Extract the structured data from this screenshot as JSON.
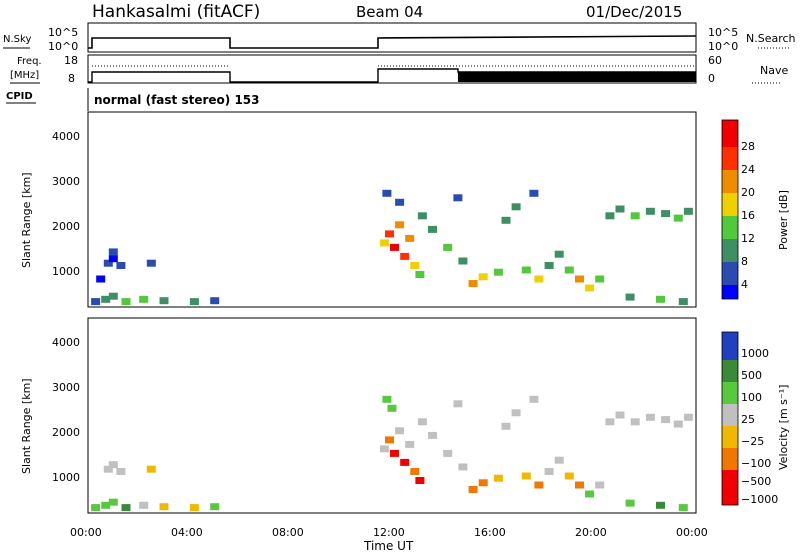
{
  "header": {
    "station": "Hankasalmi (fitACF)",
    "beam": "Beam 04",
    "date": "01/Dec/2015"
  },
  "strips": {
    "nsky_label": "N.Sky",
    "nsky_ticks": [
      "10^5",
      "10^0"
    ],
    "nsearch_ticks": [
      "10^5",
      "10^0"
    ],
    "nsearch_label": "N.Search",
    "freq_label_1": "Freq.",
    "freq_label_2": "[MHz]",
    "freq_ticks": [
      "18",
      "8"
    ],
    "nave_ticks": [
      "60",
      "0"
    ],
    "nave_label": "Nave",
    "cpid_label": "CPID",
    "cpid_value": "normal (fast stereo) 153"
  },
  "axes": {
    "ylabel": "Slant Range [km]",
    "xlabel": "Time UT",
    "y_ticks": [
      "4000",
      "3000",
      "2000",
      "1000"
    ],
    "x_ticks": [
      "00:00",
      "04:00",
      "08:00",
      "12:00",
      "16:00",
      "20:00",
      "00:00"
    ]
  },
  "colors": {
    "power": [
      "#0000ff",
      "#2a4cb0",
      "#3f8f64",
      "#52c83c",
      "#f0d000",
      "#f08c00",
      "#ff3000",
      "#f00000"
    ],
    "velocity": [
      "#2040c0",
      "#3a8a3a",
      "#58c840",
      "#c0c0c0",
      "#f0b800",
      "#f07800",
      "#f00000"
    ]
  },
  "chart_data": [
    {
      "type": "heatmap",
      "title": "Power",
      "ylabel": "Slant Range [km]",
      "xlabel": "Time UT",
      "xlim": [
        0,
        24
      ],
      "ylim": [
        180,
        4500
      ],
      "colorbar_label": "Power [dB]",
      "colorbar_ticks": [
        "28",
        "24",
        "20",
        "16",
        "12",
        "8",
        "4"
      ],
      "clim": [
        0,
        30
      ],
      "points": [
        [
          0.3,
          300,
          6
        ],
        [
          0.7,
          350,
          8
        ],
        [
          1.0,
          420,
          10
        ],
        [
          1.5,
          300,
          12
        ],
        [
          2.2,
          350,
          14
        ],
        [
          3.0,
          320,
          8
        ],
        [
          4.2,
          300,
          9
        ],
        [
          5.0,
          320,
          6
        ],
        [
          0.8,
          1150,
          4
        ],
        [
          1.0,
          1250,
          3
        ],
        [
          1.3,
          1100,
          6
        ],
        [
          0.5,
          800,
          3
        ],
        [
          2.5,
          1150,
          6
        ],
        [
          1.0,
          1400,
          4
        ],
        [
          11.7,
          1600,
          18
        ],
        [
          11.9,
          1800,
          24
        ],
        [
          12.1,
          1500,
          28
        ],
        [
          12.3,
          2000,
          20
        ],
        [
          12.5,
          1300,
          26
        ],
        [
          12.7,
          1700,
          22
        ],
        [
          12.9,
          1100,
          16
        ],
        [
          13.1,
          900,
          14
        ],
        [
          13.2,
          2200,
          10
        ],
        [
          13.6,
          1900,
          8
        ],
        [
          14.2,
          1500,
          12
        ],
        [
          14.8,
          1200,
          10
        ],
        [
          15.2,
          700,
          20
        ],
        [
          15.6,
          850,
          18
        ],
        [
          16.2,
          950,
          14
        ],
        [
          16.5,
          2100,
          10
        ],
        [
          16.9,
          2400,
          8
        ],
        [
          17.3,
          1000,
          12
        ],
        [
          17.8,
          800,
          16
        ],
        [
          18.2,
          1100,
          10
        ],
        [
          18.6,
          1350,
          8
        ],
        [
          19.0,
          1000,
          12
        ],
        [
          19.4,
          800,
          20
        ],
        [
          19.8,
          600,
          16
        ],
        [
          20.2,
          800,
          12
        ],
        [
          20.6,
          2200,
          8
        ],
        [
          21.0,
          2350,
          10
        ],
        [
          21.6,
          2200,
          12
        ],
        [
          22.2,
          2300,
          8
        ],
        [
          22.8,
          2250,
          10
        ],
        [
          23.3,
          2150,
          12
        ],
        [
          23.7,
          2300,
          8
        ],
        [
          21.4,
          400,
          10
        ],
        [
          22.6,
          350,
          12
        ],
        [
          23.5,
          300,
          8
        ],
        [
          11.8,
          2700,
          4
        ],
        [
          12.3,
          2500,
          6
        ],
        [
          14.6,
          2600,
          4
        ],
        [
          17.6,
          2700,
          4
        ]
      ]
    },
    {
      "type": "heatmap",
      "title": "Velocity",
      "ylabel": "Slant Range [km]",
      "xlabel": "Time UT",
      "xlim": [
        0,
        24
      ],
      "ylim": [
        180,
        4500
      ],
      "colorbar_label": "Velocity [m s⁻¹]",
      "colorbar_ticks": [
        "1000",
        "500",
        "100",
        "25",
        "−25",
        "−100",
        "−500",
        "−1000"
      ],
      "points": [
        [
          0.3,
          300,
          40
        ],
        [
          0.7,
          350,
          80
        ],
        [
          1.0,
          420,
          60
        ],
        [
          1.5,
          300,
          120
        ],
        [
          2.2,
          350,
          -20
        ],
        [
          3.0,
          320,
          -80
        ],
        [
          4.2,
          300,
          -60
        ],
        [
          5.0,
          320,
          30
        ],
        [
          0.8,
          1150,
          0
        ],
        [
          1.0,
          1250,
          -10
        ],
        [
          1.3,
          1100,
          20
        ],
        [
          2.5,
          1150,
          -30
        ],
        [
          11.7,
          1600,
          0
        ],
        [
          11.9,
          1800,
          -300
        ],
        [
          12.1,
          1500,
          -700
        ],
        [
          12.3,
          2000,
          0
        ],
        [
          12.5,
          1300,
          -900
        ],
        [
          12.7,
          1700,
          10
        ],
        [
          12.9,
          1100,
          -400
        ],
        [
          13.1,
          900,
          -600
        ],
        [
          13.2,
          2200,
          5
        ],
        [
          13.6,
          1900,
          0
        ],
        [
          14.2,
          1500,
          10
        ],
        [
          14.8,
          1200,
          -5
        ],
        [
          15.2,
          700,
          -200
        ],
        [
          15.6,
          850,
          -150
        ],
        [
          16.2,
          950,
          -50
        ],
        [
          16.5,
          2100,
          0
        ],
        [
          16.9,
          2400,
          5
        ],
        [
          17.3,
          1000,
          -80
        ],
        [
          17.8,
          800,
          -120
        ],
        [
          18.2,
          1100,
          0
        ],
        [
          18.6,
          1350,
          10
        ],
        [
          19.0,
          1000,
          -30
        ],
        [
          19.4,
          800,
          -120
        ],
        [
          19.8,
          600,
          60
        ],
        [
          20.2,
          800,
          0
        ],
        [
          20.6,
          2200,
          0
        ],
        [
          21.0,
          2350,
          5
        ],
        [
          21.6,
          2200,
          -5
        ],
        [
          22.2,
          2300,
          0
        ],
        [
          22.8,
          2250,
          10
        ],
        [
          23.3,
          2150,
          0
        ],
        [
          23.7,
          2300,
          -10
        ],
        [
          21.4,
          400,
          80
        ],
        [
          22.6,
          350,
          120
        ],
        [
          23.5,
          300,
          60
        ],
        [
          11.8,
          2700,
          60
        ],
        [
          12.0,
          2500,
          80
        ],
        [
          14.6,
          2600,
          0
        ],
        [
          17.6,
          2700,
          0
        ]
      ]
    }
  ]
}
